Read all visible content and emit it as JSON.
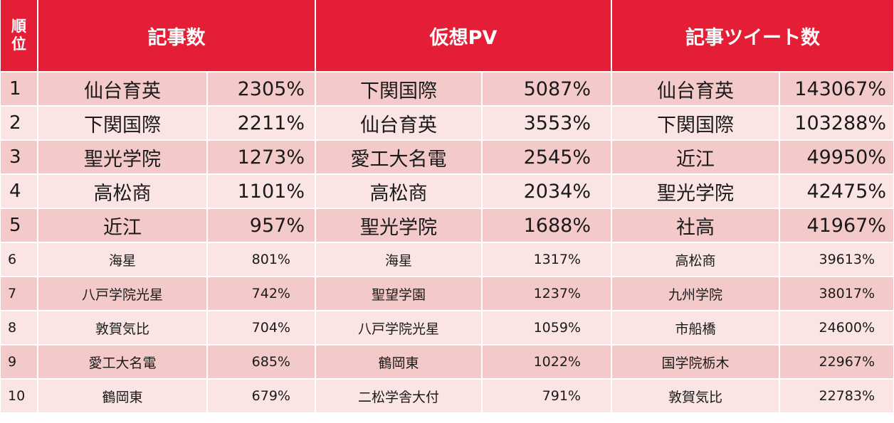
{
  "header": {
    "rank_label": [
      "順",
      "位"
    ],
    "columns": [
      "記事数",
      "仮想PV",
      "記事ツイート数"
    ]
  },
  "rows": [
    {
      "rank": "1",
      "c1_name": "仙台育英",
      "c1_val": "2305%",
      "c2_name": "下関国際",
      "c2_val": "5087%",
      "c3_name": "仙台育英",
      "c3_val": "143067%"
    },
    {
      "rank": "2",
      "c1_name": "下関国際",
      "c1_val": "2211%",
      "c2_name": "仙台育英",
      "c2_val": "3553%",
      "c3_name": "下関国際",
      "c3_val": "103288%"
    },
    {
      "rank": "3",
      "c1_name": "聖光学院",
      "c1_val": "1273%",
      "c2_name": "愛工大名電",
      "c2_val": "2545%",
      "c3_name": "近江",
      "c3_val": "49950%"
    },
    {
      "rank": "4",
      "c1_name": "高松商",
      "c1_val": "1101%",
      "c2_name": "高松商",
      "c2_val": "2034%",
      "c3_name": "聖光学院",
      "c3_val": "42475%"
    },
    {
      "rank": "5",
      "c1_name": "近江",
      "c1_val": "957%",
      "c2_name": "聖光学院",
      "c2_val": "1688%",
      "c3_name": "社高",
      "c3_val": "41967%"
    },
    {
      "rank": "6",
      "c1_name": "海星",
      "c1_val": "801%",
      "c2_name": "海星",
      "c2_val": "1317%",
      "c3_name": "高松商",
      "c3_val": "39613%"
    },
    {
      "rank": "7",
      "c1_name": "八戸学院光星",
      "c1_val": "742%",
      "c2_name": "聖望学園",
      "c2_val": "1237%",
      "c3_name": "九州学院",
      "c3_val": "38017%"
    },
    {
      "rank": "8",
      "c1_name": "敦賀気比",
      "c1_val": "704%",
      "c2_name": "八戸学院光星",
      "c2_val": "1059%",
      "c3_name": "市船橋",
      "c3_val": "24600%"
    },
    {
      "rank": "9",
      "c1_name": "愛工大名電",
      "c1_val": "685%",
      "c2_name": "鶴岡東",
      "c2_val": "1022%",
      "c3_name": "国学院栃木",
      "c3_val": "22967%"
    },
    {
      "rank": "10",
      "c1_name": "鶴岡東",
      "c1_val": "679%",
      "c2_name": "二松学舎大付",
      "c2_val": "791%",
      "c3_name": "敦賀気比",
      "c3_val": "22783%"
    }
  ],
  "colors": {
    "header_bg": "#e31e36",
    "row_dark": "#f4c9c9",
    "row_light": "#fbe5e4"
  }
}
